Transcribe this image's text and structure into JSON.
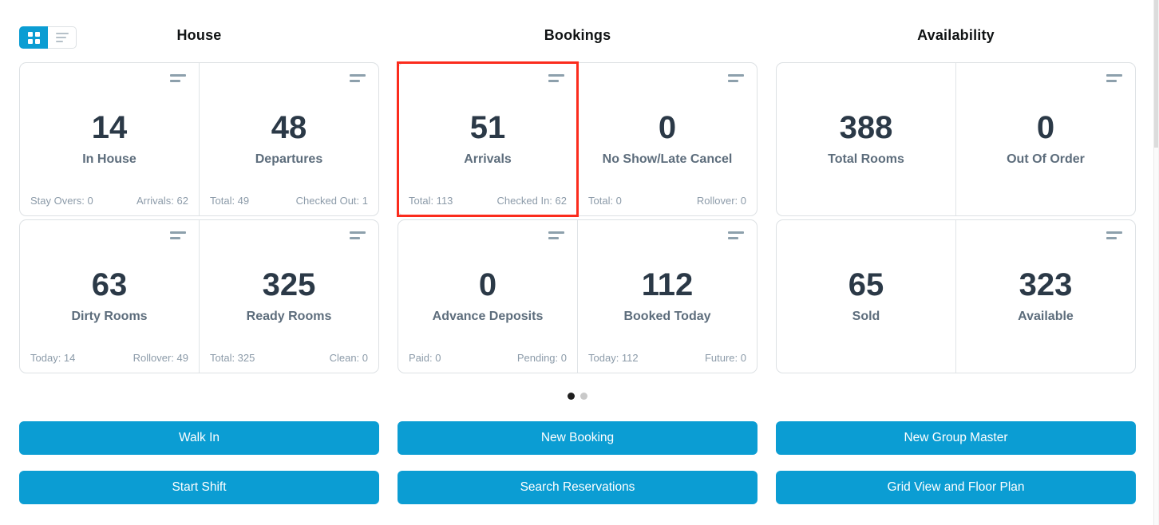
{
  "colors": {
    "accent_blue": "#0b9dd3",
    "highlight_red": "#fb2c1d",
    "number_text": "#2b3947",
    "label_text": "#5d6d7c",
    "footer_text": "#8c9ba9"
  },
  "view_toggle": {
    "grid_icon": "grid-view-icon",
    "list_icon": "list-view-icon",
    "selected": "grid"
  },
  "columns": [
    {
      "title": "House",
      "rows": [
        {
          "cells": [
            {
              "value": "14",
              "label": "In House",
              "footer_left": "Stay Overs: 0",
              "footer_right": "Arrivals: 62"
            },
            {
              "value": "48",
              "label": "Departures",
              "footer_left": "Total: 49",
              "footer_right": "Checked Out: 1"
            }
          ]
        },
        {
          "cells": [
            {
              "value": "63",
              "label": "Dirty Rooms",
              "footer_left": "Today: 14",
              "footer_right": "Rollover: 49"
            },
            {
              "value": "325",
              "label": "Ready Rooms",
              "footer_left": "Total: 325",
              "footer_right": "Clean: 0"
            }
          ]
        }
      ]
    },
    {
      "title": "Bookings",
      "rows": [
        {
          "cells": [
            {
              "value": "51",
              "label": "Arrivals",
              "footer_left": "Total: 113",
              "footer_right": "Checked In: 62",
              "highlighted": true
            },
            {
              "value": "0",
              "label": "No Show/Late Cancel",
              "footer_left": "Total: 0",
              "footer_right": "Rollover: 0"
            }
          ]
        },
        {
          "cells": [
            {
              "value": "0",
              "label": "Advance Deposits",
              "footer_left": "Paid: 0",
              "footer_right": "Pending: 0"
            },
            {
              "value": "112",
              "label": "Booked Today",
              "footer_left": "Today: 112",
              "footer_right": "Future: 0"
            }
          ]
        }
      ]
    },
    {
      "title": "Availability",
      "rows": [
        {
          "cells": [
            {
              "value": "388",
              "label": "Total Rooms"
            },
            {
              "value": "0",
              "label": "Out Of Order"
            }
          ]
        },
        {
          "cells": [
            {
              "value": "65",
              "label": "Sold"
            },
            {
              "value": "323",
              "label": "Available"
            }
          ]
        }
      ]
    }
  ],
  "pagination": {
    "total_dots": 2,
    "active_dot": 1
  },
  "actions": [
    [
      "Walk In",
      "New Booking",
      "New Group Master"
    ],
    [
      "Start Shift",
      "Search Reservations",
      "Grid View and Floor Plan"
    ]
  ]
}
